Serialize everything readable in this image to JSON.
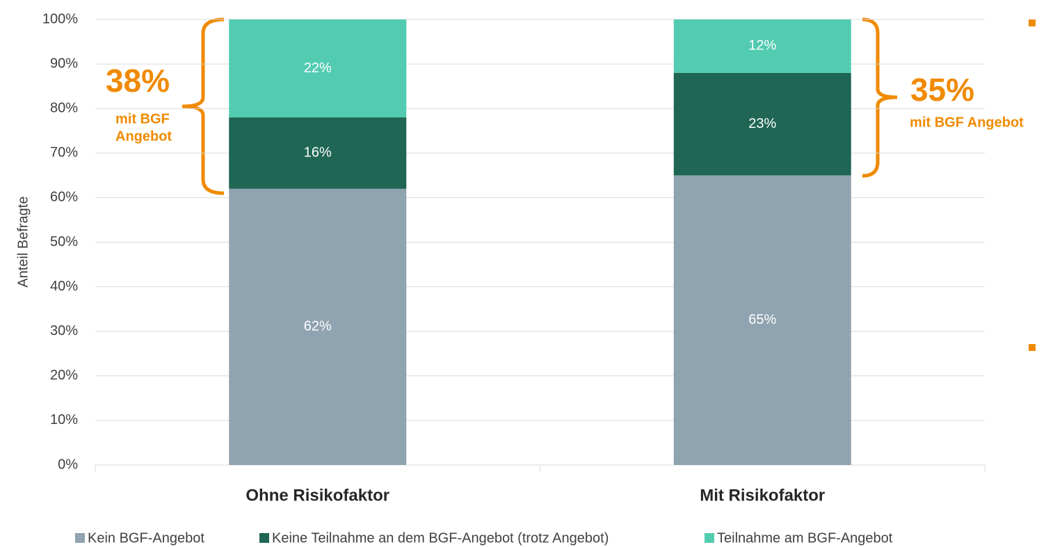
{
  "chart_data": {
    "type": "stacked_bar",
    "categories": [
      "Ohne Risikofaktor",
      "Mit Risikofaktor"
    ],
    "series": [
      {
        "name": "Kein BGF-Angebot",
        "color": "#8fa3b0",
        "values": [
          62,
          65
        ],
        "value_labels": [
          "62%",
          "65%"
        ]
      },
      {
        "name": "Keine Teilnahme an dem BGF-Angebot (trotz Angebot)",
        "color": "#1f6654",
        "values": [
          16,
          23
        ],
        "value_labels": [
          "16%",
          "23%"
        ]
      },
      {
        "name": "Teilnahme am BGF-Angebot",
        "color": "#52cbb0",
        "values": [
          22,
          12
        ],
        "value_labels": [
          "22%",
          "12%"
        ]
      }
    ],
    "y_label": "Anteil Befragte",
    "ylim": [
      0,
      100
    ],
    "yticks": [
      {
        "value": 0,
        "label": "0%"
      },
      {
        "value": 10,
        "label": "10%"
      },
      {
        "value": 20,
        "label": "20%"
      },
      {
        "value": 30,
        "label": "30%"
      },
      {
        "value": 40,
        "label": "40%"
      },
      {
        "value": 50,
        "label": "50%"
      },
      {
        "value": 60,
        "label": "60%"
      },
      {
        "value": 70,
        "label": "70%"
      },
      {
        "value": 80,
        "label": "80%"
      },
      {
        "value": 90,
        "label": "90%"
      },
      {
        "value": 100,
        "label": "100%"
      }
    ],
    "grid": true,
    "legend": "bottom",
    "annotations": [
      "38%",
      "mit BGF",
      "Angebot",
      "35%",
      "mit BGF Angebot"
    ]
  }
}
